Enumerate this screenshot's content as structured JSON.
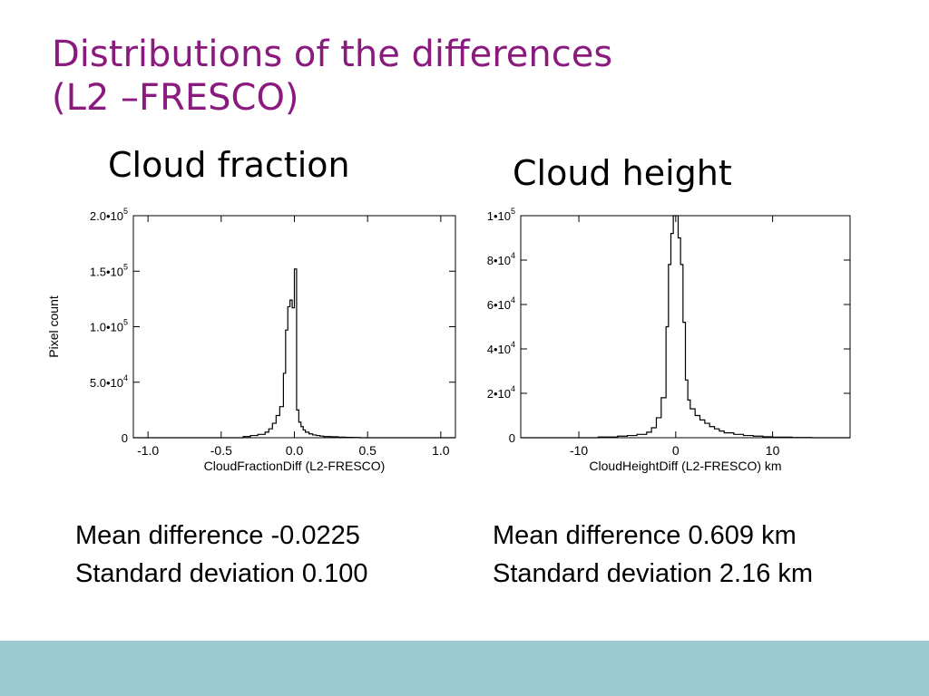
{
  "slide": {
    "title_line1": "Distributions of the differences",
    "title_line2": "(L2 –FRESCO)",
    "footer_color": "#9bcbd1",
    "title_color": "#8b1a7e"
  },
  "panels": [
    {
      "heading": "Cloud fraction",
      "stats": [
        "Mean difference -0.0225",
        "Standard deviation 0.100"
      ]
    },
    {
      "heading": "Cloud height",
      "stats": [
        "Mean difference 0.609 km",
        "Standard deviation 2.16 km"
      ]
    }
  ],
  "chart_data": [
    {
      "type": "histogram",
      "xlabel": "CloudFractionDiff (L2-FRESCO)",
      "ylabel": "Pixel count",
      "xlim": [
        -1.1,
        1.1
      ],
      "ylim": [
        0,
        200000
      ],
      "x_ticks": [
        -1.0,
        -0.5,
        0.0,
        0.5,
        1.0
      ],
      "x_tick_labels": [
        "-1.0",
        "-0.5",
        "0.0",
        "0.5",
        "1.0"
      ],
      "y_ticks": [
        {
          "value": 0,
          "base": "0",
          "exp": ""
        },
        {
          "value": 50000,
          "base": "5.0•10",
          "exp": "4"
        },
        {
          "value": 100000,
          "base": "1.0•10",
          "exp": "5"
        },
        {
          "value": 150000,
          "base": "1.5•10",
          "exp": "5"
        },
        {
          "value": 200000,
          "base": "2.0•10",
          "exp": "5"
        }
      ],
      "grid": false,
      "step_x": [
        -0.35,
        -0.3,
        -0.25,
        -0.2,
        -0.175,
        -0.15,
        -0.125,
        -0.1,
        -0.075,
        -0.06,
        -0.045,
        -0.03,
        -0.015,
        0.0,
        0.015,
        0.03,
        0.045,
        0.06,
        0.075,
        0.1,
        0.125,
        0.15,
        0.175,
        0.2,
        0.25,
        0.3,
        0.35,
        0.4
      ],
      "step_y": [
        1000,
        2000,
        3000,
        5000,
        8000,
        13000,
        20000,
        28000,
        58000,
        97000,
        118000,
        124000,
        117000,
        152000,
        25000,
        14000,
        10000,
        7000,
        5000,
        3500,
        2500,
        2000,
        1500,
        1000,
        800,
        500,
        300,
        200
      ]
    },
    {
      "type": "histogram",
      "xlabel": "CloudHeightDiff (L2-FRESCO) km",
      "ylabel": "",
      "xlim": [
        -16,
        18
      ],
      "ylim": [
        0,
        100000
      ],
      "x_ticks": [
        -10,
        0,
        10
      ],
      "x_tick_labels": [
        "-10",
        "0",
        "10"
      ],
      "y_ticks": [
        {
          "value": 0,
          "base": "0",
          "exp": ""
        },
        {
          "value": 20000,
          "base": "2•10",
          "exp": "4"
        },
        {
          "value": 40000,
          "base": "4•10",
          "exp": "4"
        },
        {
          "value": 60000,
          "base": "6•10",
          "exp": "4"
        },
        {
          "value": 80000,
          "base": "8•10",
          "exp": "4"
        },
        {
          "value": 100000,
          "base": "1•10",
          "exp": "5"
        }
      ],
      "grid": false,
      "step_x": [
        -8,
        -6,
        -5,
        -4,
        -3,
        -2.5,
        -2,
        -1.5,
        -1.0,
        -0.75,
        -0.5,
        -0.25,
        0.0,
        0.25,
        0.5,
        0.75,
        1.0,
        1.25,
        1.5,
        2,
        2.5,
        3,
        3.5,
        4,
        4.5,
        5,
        6,
        7,
        8,
        9,
        10,
        12
      ],
      "step_y": [
        300,
        700,
        1000,
        1500,
        2500,
        4500,
        9000,
        18000,
        50000,
        78000,
        92000,
        100000,
        100000,
        90000,
        78000,
        52000,
        26000,
        17000,
        13000,
        10000,
        8000,
        6500,
        5000,
        4000,
        3000,
        2200,
        1500,
        1000,
        700,
        400,
        250,
        100
      ]
    }
  ]
}
